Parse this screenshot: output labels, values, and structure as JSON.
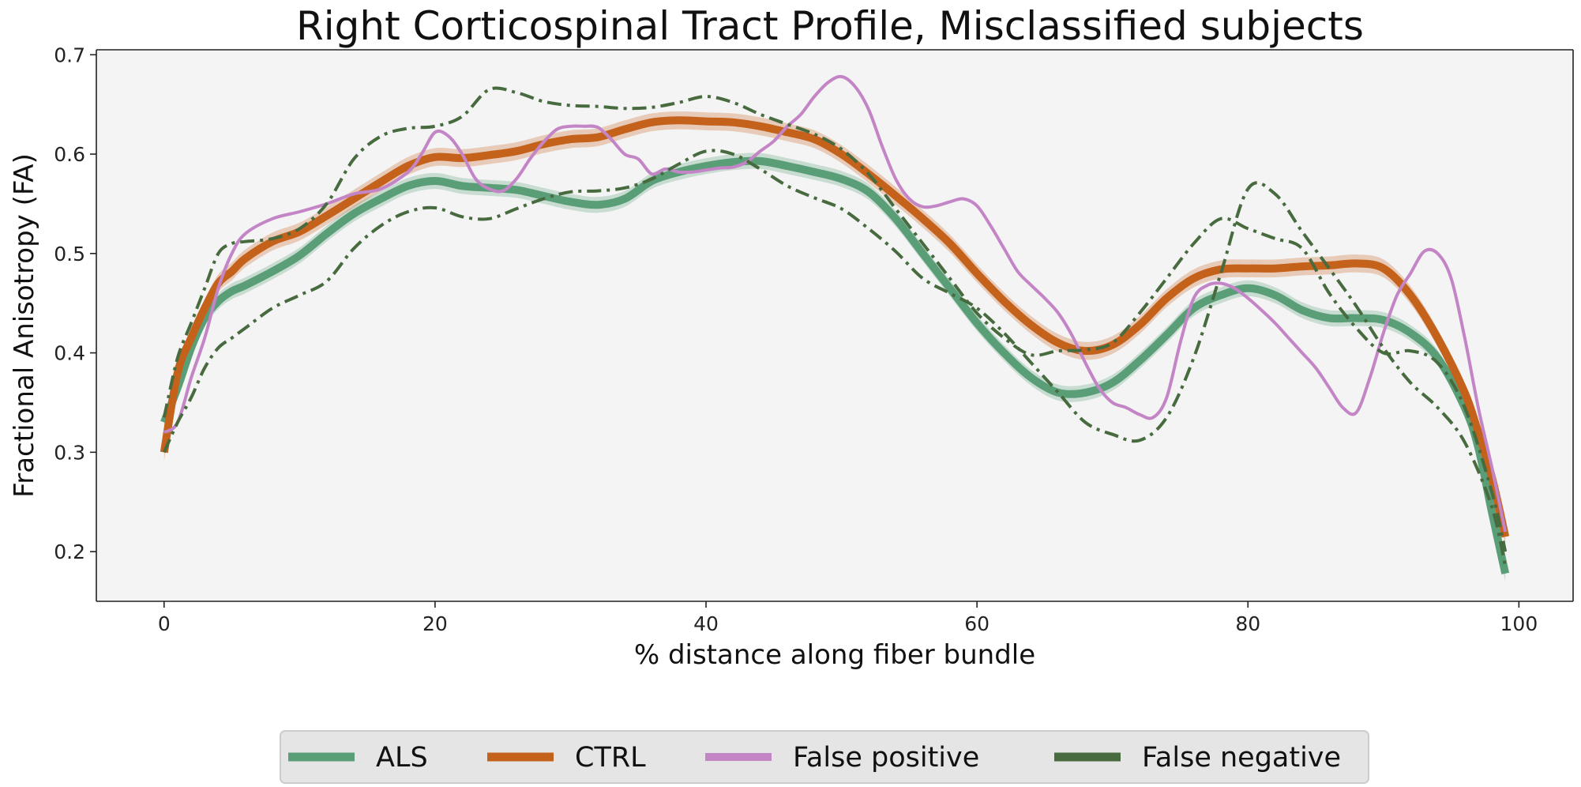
{
  "chart_data": {
    "type": "line",
    "title": "Right Corticospinal Tract Profile, Misclassified subjects",
    "xlabel": "% distance along fiber bundle",
    "ylabel": "Fractional Anisotropy (FA)",
    "xlim": [
      -5,
      104
    ],
    "ylim": [
      0.15,
      0.705
    ],
    "xticks": [
      0,
      20,
      40,
      60,
      80,
      100
    ],
    "yticks": [
      0.2,
      0.3,
      0.4,
      0.5,
      0.6,
      0.7
    ],
    "grid": false,
    "legend_position": "bottom-center",
    "series": [
      {
        "name": "ALS",
        "color": "#5a9e78",
        "style": "mean-band",
        "x": [
          0,
          1,
          2,
          3,
          4,
          5,
          6,
          8,
          10,
          12,
          14,
          16,
          18,
          20,
          22,
          24,
          26,
          28,
          30,
          32,
          34,
          36,
          38,
          40,
          42,
          44,
          46,
          48,
          50,
          52,
          54,
          56,
          58,
          60,
          62,
          64,
          66,
          68,
          70,
          72,
          74,
          76,
          78,
          80,
          82,
          84,
          86,
          88,
          90,
          92,
          94,
          96,
          97,
          98,
          99
        ],
        "values": [
          0.33,
          0.365,
          0.405,
          0.435,
          0.452,
          0.462,
          0.468,
          0.482,
          0.498,
          0.52,
          0.54,
          0.555,
          0.568,
          0.573,
          0.568,
          0.566,
          0.564,
          0.558,
          0.552,
          0.549,
          0.555,
          0.573,
          0.582,
          0.588,
          0.592,
          0.593,
          0.588,
          0.582,
          0.575,
          0.562,
          0.535,
          0.5,
          0.465,
          0.43,
          0.4,
          0.375,
          0.36,
          0.36,
          0.37,
          0.392,
          0.418,
          0.445,
          0.458,
          0.465,
          0.458,
          0.443,
          0.435,
          0.435,
          0.433,
          0.42,
          0.395,
          0.345,
          0.305,
          0.24,
          0.178
        ],
        "band": 0.008
      },
      {
        "name": "CTRL",
        "color": "#c4611b",
        "style": "mean-band",
        "x": [
          0,
          1,
          2,
          3,
          4,
          5,
          6,
          8,
          10,
          12,
          14,
          16,
          18,
          20,
          22,
          24,
          26,
          28,
          30,
          32,
          34,
          36,
          38,
          40,
          42,
          44,
          46,
          48,
          50,
          52,
          54,
          56,
          58,
          60,
          62,
          64,
          66,
          68,
          70,
          72,
          74,
          76,
          78,
          80,
          82,
          84,
          86,
          88,
          90,
          92,
          94,
          96,
          97,
          98,
          99
        ],
        "values": [
          0.3,
          0.38,
          0.415,
          0.445,
          0.47,
          0.482,
          0.495,
          0.512,
          0.522,
          0.538,
          0.555,
          0.572,
          0.588,
          0.597,
          0.596,
          0.599,
          0.603,
          0.61,
          0.615,
          0.617,
          0.625,
          0.632,
          0.634,
          0.633,
          0.632,
          0.628,
          0.622,
          0.615,
          0.6,
          0.58,
          0.558,
          0.535,
          0.51,
          0.48,
          0.452,
          0.428,
          0.41,
          0.402,
          0.408,
          0.428,
          0.455,
          0.475,
          0.484,
          0.485,
          0.485,
          0.487,
          0.488,
          0.49,
          0.485,
          0.458,
          0.415,
          0.36,
          0.32,
          0.275,
          0.215
        ],
        "band": 0.009
      },
      {
        "name": "False positive",
        "color": "#c385c6",
        "style": "solid",
        "x": [
          0,
          1,
          2,
          3,
          4,
          5,
          6,
          8,
          10,
          12,
          14,
          16,
          18,
          19,
          20,
          21,
          22,
          23,
          24,
          25,
          26,
          27,
          28,
          29,
          30,
          31,
          32,
          33,
          34,
          35,
          36,
          37,
          38,
          39,
          40,
          41,
          42,
          43,
          44,
          45,
          46,
          47,
          48,
          49,
          50,
          51,
          52,
          53,
          54,
          55,
          56,
          57,
          58,
          59,
          60,
          61,
          62,
          63,
          64,
          65,
          66,
          67,
          68,
          69,
          70,
          71,
          72,
          73,
          74,
          75,
          76,
          77,
          78,
          79,
          80,
          81,
          82,
          83,
          84,
          85,
          86,
          87,
          88,
          89,
          90,
          91,
          92,
          93,
          94,
          95,
          96,
          97,
          98,
          99
        ],
        "values": [
          0.32,
          0.33,
          0.375,
          0.415,
          0.465,
          0.5,
          0.52,
          0.535,
          0.542,
          0.55,
          0.56,
          0.565,
          0.582,
          0.6,
          0.622,
          0.618,
          0.6,
          0.575,
          0.565,
          0.563,
          0.575,
          0.595,
          0.612,
          0.625,
          0.628,
          0.628,
          0.627,
          0.615,
          0.6,
          0.595,
          0.58,
          0.585,
          0.582,
          0.582,
          0.584,
          0.586,
          0.587,
          0.592,
          0.603,
          0.613,
          0.628,
          0.64,
          0.658,
          0.672,
          0.678,
          0.668,
          0.645,
          0.608,
          0.575,
          0.555,
          0.547,
          0.548,
          0.552,
          0.555,
          0.548,
          0.528,
          0.505,
          0.482,
          0.468,
          0.455,
          0.44,
          0.418,
          0.39,
          0.365,
          0.35,
          0.345,
          0.338,
          0.335,
          0.355,
          0.41,
          0.455,
          0.468,
          0.47,
          0.465,
          0.455,
          0.443,
          0.43,
          0.415,
          0.4,
          0.385,
          0.365,
          0.345,
          0.34,
          0.375,
          0.42,
          0.458,
          0.48,
          0.502,
          0.5,
          0.475,
          0.415,
          0.345,
          0.285,
          0.22
        ],
        "band": 0
      },
      {
        "name": "False negative",
        "color": "#476b3f",
        "style": "dashdot",
        "subseries": [
          {
            "x": [
              0,
              1,
              2,
              3,
              4,
              5,
              6,
              8,
              10,
              12,
              14,
              16,
              18,
              20,
              22,
              24,
              26,
              28,
              30,
              32,
              34,
              36,
              38,
              40,
              42,
              44,
              46,
              48,
              50,
              52,
              54,
              56,
              58,
              60,
              62,
              64,
              66,
              68,
              70,
              72,
              74,
              76,
              78,
              80,
              82,
              84,
              86,
              88,
              90,
              92,
              94,
              96,
              98,
              99
            ],
            "values": [
              0.335,
              0.395,
              0.43,
              0.465,
              0.5,
              0.51,
              0.512,
              0.515,
              0.525,
              0.55,
              0.595,
              0.618,
              0.626,
              0.628,
              0.638,
              0.665,
              0.662,
              0.653,
              0.649,
              0.648,
              0.646,
              0.647,
              0.652,
              0.658,
              0.652,
              0.64,
              0.63,
              0.62,
              0.605,
              0.58,
              0.545,
              0.51,
              0.475,
              0.44,
              0.415,
              0.398,
              0.402,
              0.403,
              0.41,
              0.44,
              0.475,
              0.51,
              0.535,
              0.525,
              0.515,
              0.505,
              0.46,
              0.425,
              0.4,
              0.402,
              0.39,
              0.345,
              0.26,
              0.2
            ]
          },
          {
            "x": [
              0,
              1,
              2,
              3,
              4,
              5,
              6,
              8,
              10,
              12,
              14,
              16,
              18,
              20,
              22,
              24,
              26,
              28,
              30,
              32,
              34,
              36,
              38,
              40,
              42,
              44,
              46,
              48,
              50,
              52,
              54,
              56,
              58,
              60,
              62,
              64,
              66,
              68,
              70,
              72,
              74,
              76,
              78,
              80,
              82,
              84,
              86,
              88,
              90,
              92,
              94,
              96,
              98,
              99
            ],
            "values": [
              0.3,
              0.33,
              0.355,
              0.385,
              0.405,
              0.415,
              0.425,
              0.445,
              0.458,
              0.472,
              0.505,
              0.528,
              0.542,
              0.546,
              0.537,
              0.535,
              0.545,
              0.555,
              0.562,
              0.563,
              0.566,
              0.575,
              0.59,
              0.603,
              0.6,
              0.585,
              0.568,
              0.556,
              0.545,
              0.525,
              0.502,
              0.475,
              0.46,
              0.445,
              0.42,
              0.39,
              0.36,
              0.33,
              0.318,
              0.312,
              0.335,
              0.395,
              0.48,
              0.565,
              0.56,
              0.522,
              0.485,
              0.447,
              0.405,
              0.37,
              0.345,
              0.31,
              0.245,
              0.185
            ]
          }
        ],
        "band": 0
      }
    ]
  }
}
